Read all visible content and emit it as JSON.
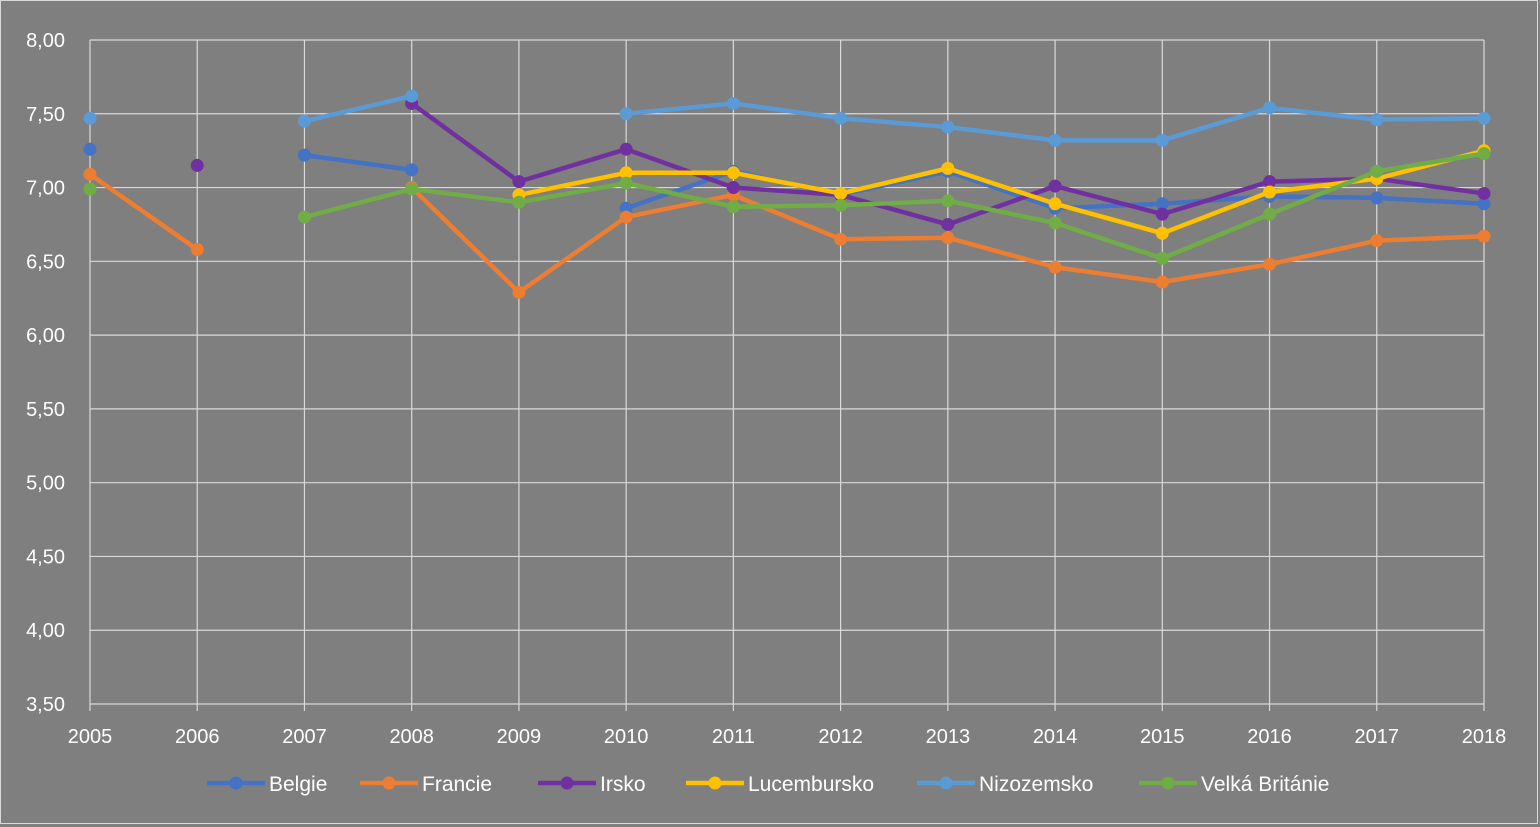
{
  "chart_data": {
    "type": "line",
    "title": "",
    "xlabel": "",
    "ylabel": "",
    "x": [
      "2005",
      "2006",
      "2007",
      "2008",
      "2009",
      "2010",
      "2011",
      "2012",
      "2013",
      "2014",
      "2015",
      "2016",
      "2017",
      "2018"
    ],
    "ylim": [
      3.5,
      8.0
    ],
    "y_ticks": [
      "3,50",
      "4,00",
      "4,50",
      "5,00",
      "5,50",
      "6,00",
      "6,50",
      "7,00",
      "7,50",
      "8,00"
    ],
    "grid": "horizontal and vertical",
    "legend_position": "bottom",
    "series": [
      {
        "name": "Belgie",
        "color": "#4472c4",
        "values": [
          7.26,
          null,
          7.22,
          7.12,
          null,
          6.86,
          7.11,
          6.95,
          7.11,
          6.86,
          6.89,
          6.94,
          6.93,
          6.89
        ]
      },
      {
        "name": "Francie",
        "color": "#ed7d31",
        "values": [
          7.09,
          6.58,
          null,
          7.0,
          6.29,
          6.8,
          6.95,
          6.65,
          6.66,
          6.46,
          6.36,
          6.48,
          6.64,
          6.67
        ]
      },
      {
        "name": "Irsko",
        "color": "#7030a0",
        "values": [
          null,
          7.15,
          null,
          7.57,
          7.04,
          7.26,
          7.0,
          6.95,
          6.75,
          7.01,
          6.82,
          7.04,
          7.06,
          6.96
        ]
      },
      {
        "name": "Lucembursko",
        "color": "#ffc000",
        "values": [
          null,
          null,
          null,
          null,
          6.95,
          7.1,
          7.1,
          6.96,
          7.13,
          6.89,
          6.69,
          6.97,
          7.06,
          7.25
        ]
      },
      {
        "name": "Nizozemsko",
        "color": "#5b9bd5",
        "values": [
          7.47,
          null,
          7.45,
          7.62,
          null,
          7.5,
          7.57,
          7.47,
          7.41,
          7.32,
          7.32,
          7.54,
          7.46,
          7.47
        ]
      },
      {
        "name": "Velká Británie",
        "color": "#70ad47",
        "values": [
          6.99,
          null,
          6.8,
          6.99,
          6.9,
          7.03,
          6.87,
          6.88,
          6.91,
          6.76,
          6.52,
          6.82,
          7.11,
          7.23
        ]
      }
    ]
  }
}
